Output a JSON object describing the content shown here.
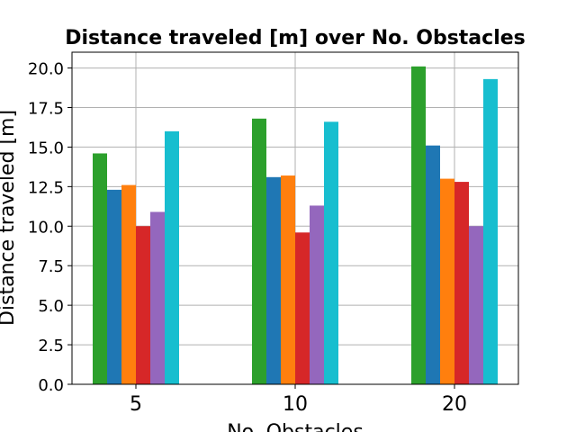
{
  "chart_data": {
    "type": "bar",
    "title": "Distance traveled [m] over No. Obstacles",
    "xlabel": "No. Obstacles",
    "ylabel": "Distance traveled [m]",
    "categories": [
      "5",
      "10",
      "20"
    ],
    "ylim": [
      0,
      21
    ],
    "yticks": [
      "0.0",
      "2.5",
      "5.0",
      "7.5",
      "10.0",
      "12.5",
      "15.0",
      "17.5",
      "20.0"
    ],
    "grid": true,
    "series": [
      {
        "color": "#2ca02c",
        "values": [
          14.6,
          16.8,
          20.1
        ]
      },
      {
        "color": "#1f77b4",
        "values": [
          12.3,
          13.1,
          15.1
        ]
      },
      {
        "color": "#ff7f0e",
        "values": [
          12.6,
          13.2,
          13.0
        ]
      },
      {
        "color": "#d62728",
        "values": [
          10.0,
          9.6,
          12.8
        ]
      },
      {
        "color": "#9467bd",
        "values": [
          10.9,
          11.3,
          10.0
        ]
      },
      {
        "color": "#17becf",
        "values": [
          16.0,
          16.6,
          19.3
        ]
      }
    ]
  }
}
